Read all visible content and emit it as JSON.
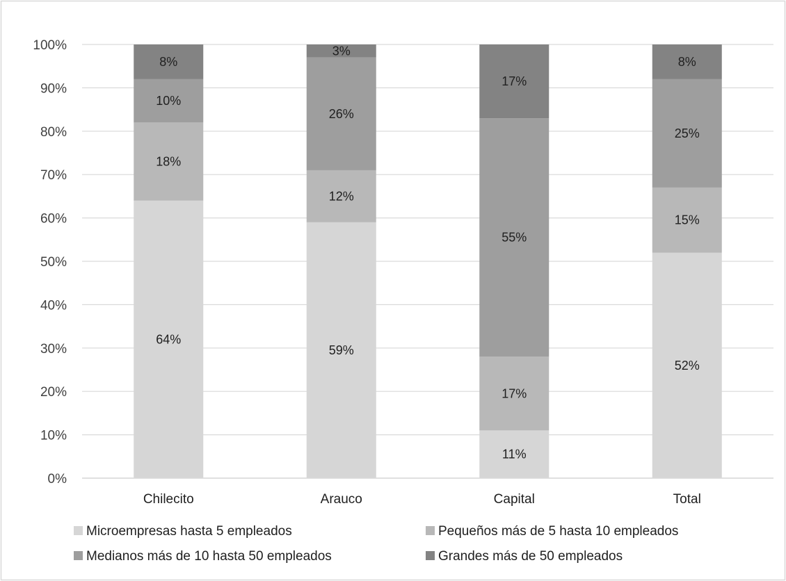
{
  "chart_data": {
    "type": "bar",
    "stacked": true,
    "normalized": true,
    "title": "",
    "xlabel": "",
    "ylabel": "",
    "ylim": [
      0,
      100
    ],
    "yticks": [
      "0%",
      "10%",
      "20%",
      "30%",
      "40%",
      "50%",
      "60%",
      "70%",
      "80%",
      "90%",
      "100%"
    ],
    "grid": true,
    "legend_position": "bottom",
    "categories": [
      "Chilecito",
      "Arauco",
      "Capital",
      "Total"
    ],
    "series": [
      {
        "name": "Microempresas hasta 5 empleados",
        "values": [
          64,
          59,
          11,
          52
        ],
        "labels": [
          "64%",
          "59%",
          "11%",
          "52%"
        ],
        "color": "#d6d6d6"
      },
      {
        "name": "Pequeños más de 5 hasta 10 empleados",
        "values": [
          18,
          12,
          17,
          15
        ],
        "labels": [
          "18%",
          "12%",
          "17%",
          "15%"
        ],
        "color": "#b8b8b8"
      },
      {
        "name": "Medianos más de 10 hasta 50 empleados",
        "values": [
          10,
          26,
          55,
          25
        ],
        "labels": [
          "10%",
          "26%",
          "55%",
          "25%"
        ],
        "color": "#9e9e9e"
      },
      {
        "name": "Grandes más de 50 empleados",
        "values": [
          8,
          3,
          17,
          8
        ],
        "labels": [
          "8%",
          "3%",
          "17%",
          "8%"
        ],
        "color": "#838383"
      }
    ]
  }
}
